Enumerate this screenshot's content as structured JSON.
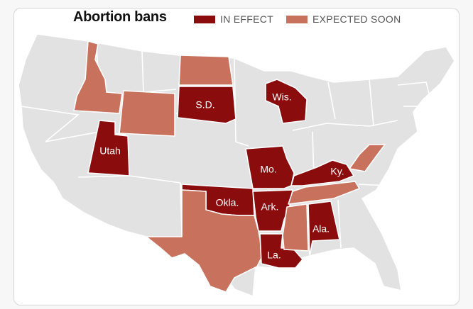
{
  "title": "Abortion bans",
  "legend": [
    {
      "label": "IN EFFECT",
      "color": "#8b0c0c"
    },
    {
      "label": "EXPECTED SOON",
      "color": "#c8715c"
    }
  ],
  "colors": {
    "in_effect": "#8b0c0c",
    "expected_soon": "#c8715c",
    "none": "#e2e2e2"
  },
  "states": {
    "utah": {
      "label": "Utah",
      "status": "in_effect"
    },
    "south_dakota": {
      "label": "S.D.",
      "status": "in_effect"
    },
    "wisconsin": {
      "label": "Wis.",
      "status": "in_effect"
    },
    "missouri": {
      "label": "Mo.",
      "status": "in_effect"
    },
    "kentucky": {
      "label": "Ky.",
      "status": "in_effect"
    },
    "oklahoma": {
      "label": "Okla.",
      "status": "in_effect"
    },
    "arkansas": {
      "label": "Ark.",
      "status": "in_effect"
    },
    "alabama": {
      "label": "Ala.",
      "status": "in_effect"
    },
    "louisiana": {
      "label": "La.",
      "status": "in_effect"
    },
    "idaho": {
      "label": "",
      "status": "expected_soon"
    },
    "wyoming": {
      "label": "",
      "status": "expected_soon"
    },
    "north_dakota": {
      "label": "",
      "status": "expected_soon"
    },
    "texas": {
      "label": "",
      "status": "expected_soon"
    },
    "tennessee": {
      "label": "",
      "status": "expected_soon"
    },
    "mississippi": {
      "label": "",
      "status": "expected_soon"
    },
    "west_virginia": {
      "label": "",
      "status": "expected_soon"
    }
  }
}
